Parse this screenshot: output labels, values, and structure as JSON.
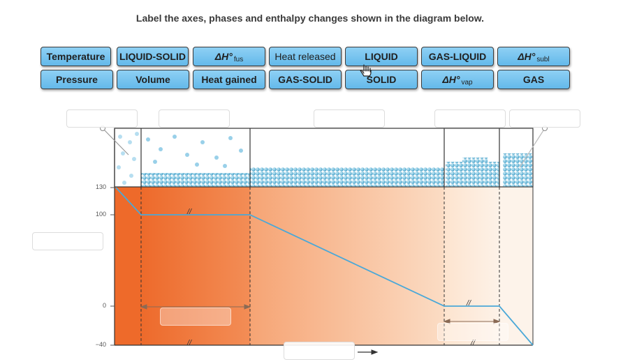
{
  "instruction": "Label the axes, phases and enthalpy changes shown in the diagram below.",
  "labels": [
    {
      "text": "Temperature"
    },
    {
      "text": "LIQUID-SOLID"
    },
    {
      "symbol": "ΔH°",
      "sub": "fus"
    },
    {
      "text": "Heat released"
    },
    {
      "text": "LIQUID"
    },
    {
      "text": "GAS-LIQUID"
    },
    {
      "symbol": "ΔH°",
      "sub": "subl"
    },
    {
      "text": "Pressure"
    },
    {
      "text": "Volume"
    },
    {
      "text": "Heat gained"
    },
    {
      "text": "GAS-SOLID"
    },
    {
      "text": "SOLID"
    },
    {
      "symbol": "ΔH°",
      "sub": "vap"
    },
    {
      "text": "GAS"
    }
  ],
  "y_ticks": [
    "130",
    "100",
    "0",
    "−40"
  ],
  "break_mark": "//",
  "cursor_icon": "hand-pointer-icon",
  "colors": {
    "chip_fill": "#6cbfee",
    "curve": "#4aa8d8",
    "region_dark": "#ee6a2a",
    "region_light": "#fdf0e4"
  }
}
